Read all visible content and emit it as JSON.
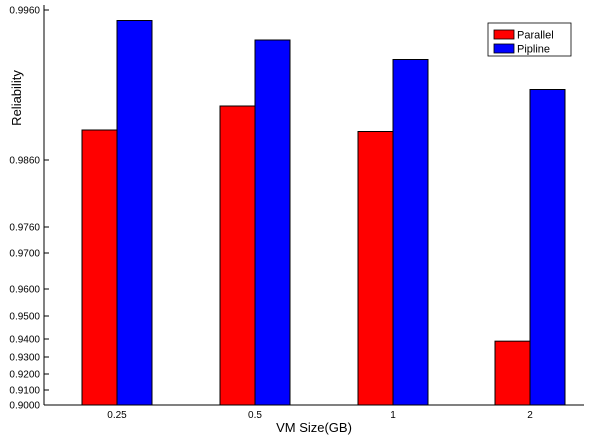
{
  "chart_data": {
    "type": "bar",
    "xlabel": "VM Size(GB)",
    "ylabel": "Reliability",
    "categories": [
      "0.25",
      "0.5",
      "1",
      "2"
    ],
    "series": [
      {
        "name": "Parallel",
        "color": "#ff0000",
        "values": [
          0.988,
          0.9896,
          0.9879,
          0.9388
        ]
      },
      {
        "name": "Pipline",
        "color": "#0000ff",
        "values": [
          0.9953,
          0.994,
          0.9927,
          0.9907
        ]
      }
    ],
    "yticks": [
      "0.9000",
      "0.9100",
      "0.9200",
      "0.9300",
      "0.9400",
      "0.9500",
      "0.9600",
      "0.9700",
      "0.9760",
      "0.9860",
      "0.9960"
    ],
    "legend_position": "top-right"
  }
}
